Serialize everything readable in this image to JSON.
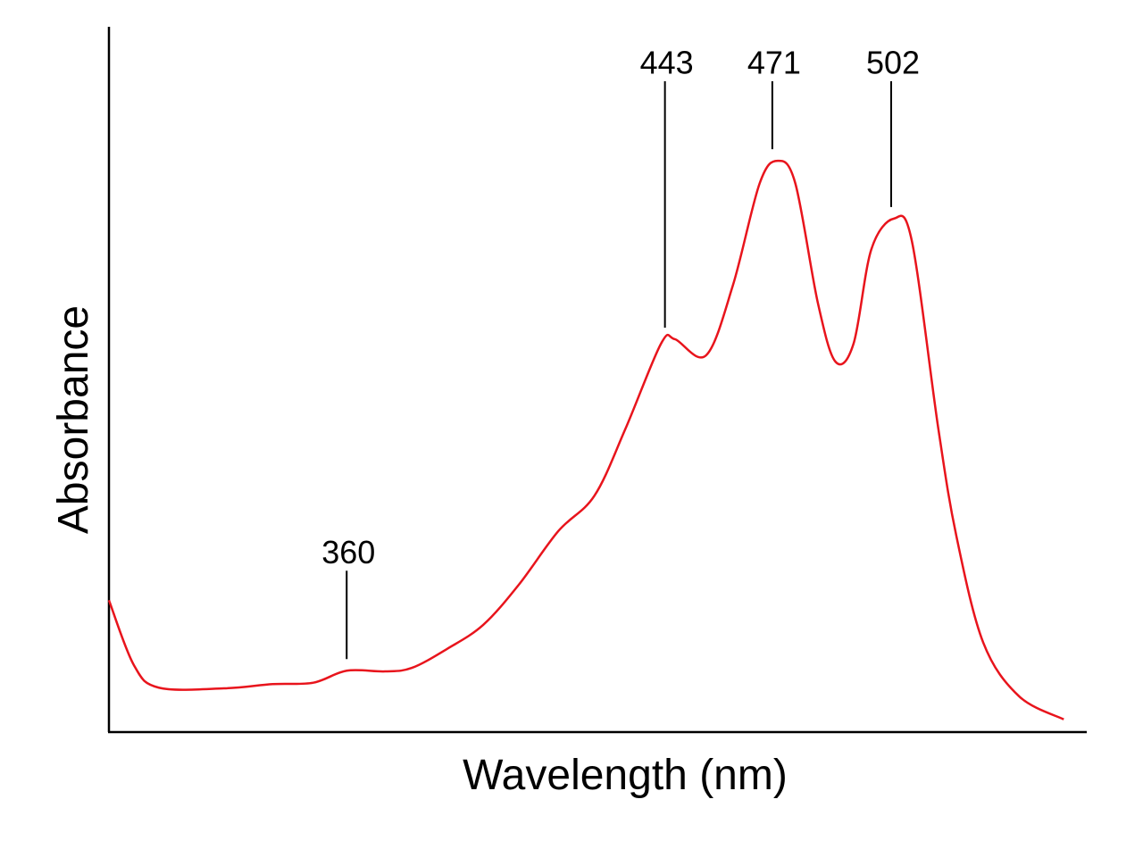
{
  "chart_data": {
    "type": "line",
    "xlabel": "Wavelength (nm)",
    "ylabel": "Absorbance",
    "xlim": [
      298,
      553
    ],
    "ylim": [
      0,
      1
    ],
    "series": [
      {
        "color": "#e8141c",
        "x": [
          298,
          304.5,
          311,
          328,
          340.7,
          351.3,
          360,
          370,
          377,
          386.2,
          395.6,
          404.9,
          415.2,
          424.6,
          432.7,
          442,
          445.6,
          453.7,
          460.7,
          467.7,
          472.4,
          477,
          482.9,
          487.5,
          492.2,
          496.8,
          502.7,
          507.4,
          514.3,
          519,
          526,
          535.3,
          547
        ],
        "values": [
          0.187,
          0.095,
          0.063,
          0.062,
          0.068,
          0.07,
          0.087,
          0.086,
          0.091,
          0.118,
          0.152,
          0.209,
          0.285,
          0.335,
          0.43,
          0.551,
          0.557,
          0.534,
          0.633,
          0.778,
          0.81,
          0.778,
          0.608,
          0.525,
          0.551,
          0.684,
          0.728,
          0.696,
          0.43,
          0.278,
          0.127,
          0.051,
          0.018
        ]
      }
    ],
    "annotations": [
      {
        "x": 360,
        "y": 0.087
      },
      {
        "x": 443,
        "y": 0.557
      },
      {
        "x": 471,
        "y": 0.81
      },
      {
        "x": 502,
        "y": 0.728
      }
    ]
  }
}
